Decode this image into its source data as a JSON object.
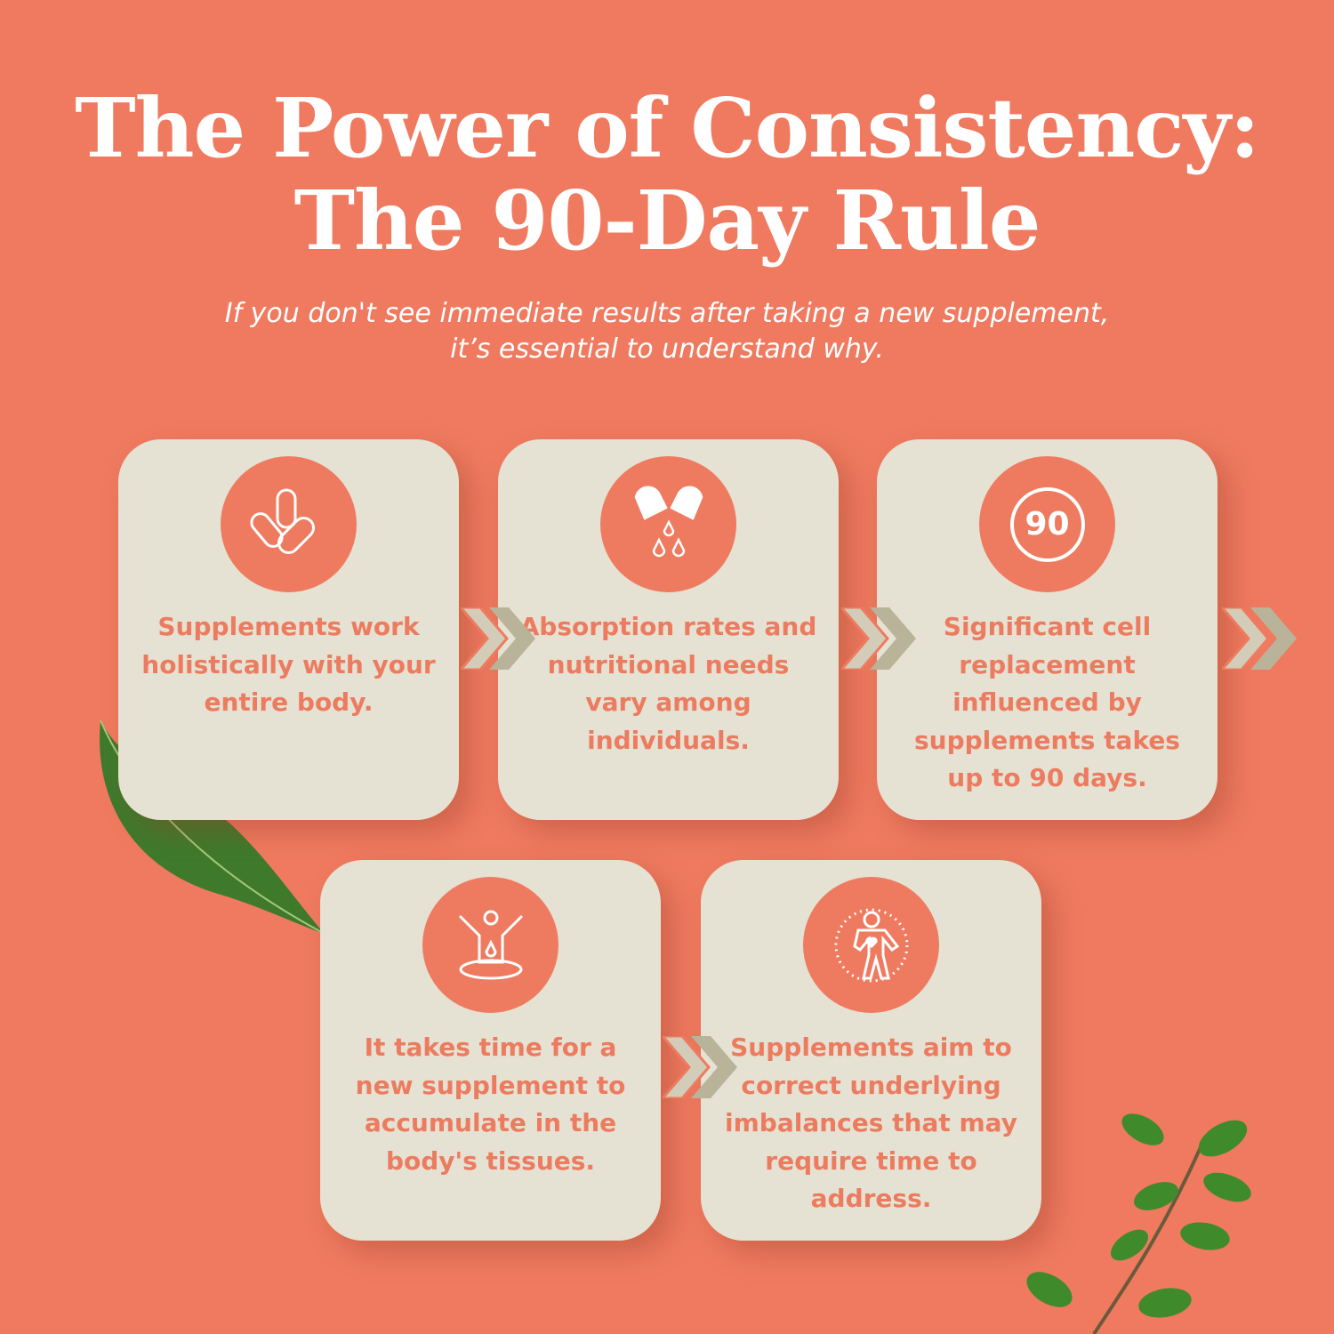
{
  "title": {
    "line1": "The Power of Consistency:",
    "line2": "The 90-Day Rule"
  },
  "subtitle": {
    "line1": "If you don't see immediate results after taking a new supplement,",
    "line2": "it’s essential to understand why."
  },
  "colors": {
    "background": "#ef7a5f",
    "card": "#e5e2d3",
    "accent": "#ee7b5f",
    "chevron_light": "#d2ccb8",
    "chevron_dark": "#b9b39a"
  },
  "cards": [
    {
      "icon": "capsules-icon",
      "text": "Supplements work holistically with your entire body."
    },
    {
      "icon": "capsule-drops-icon",
      "text": "Absorption rates and nutritional needs vary among individuals."
    },
    {
      "icon": "ninety-badge-icon",
      "icon_text": "90",
      "text": "Significant cell replacement influenced by supplements takes up to 90 days."
    },
    {
      "icon": "body-absorption-icon",
      "text": "It takes time for a new supplement to accumulate in the body's tissues."
    },
    {
      "icon": "body-heart-icon",
      "text": "Supplements aim to correct underlying imbalances that may require time to address."
    }
  ]
}
